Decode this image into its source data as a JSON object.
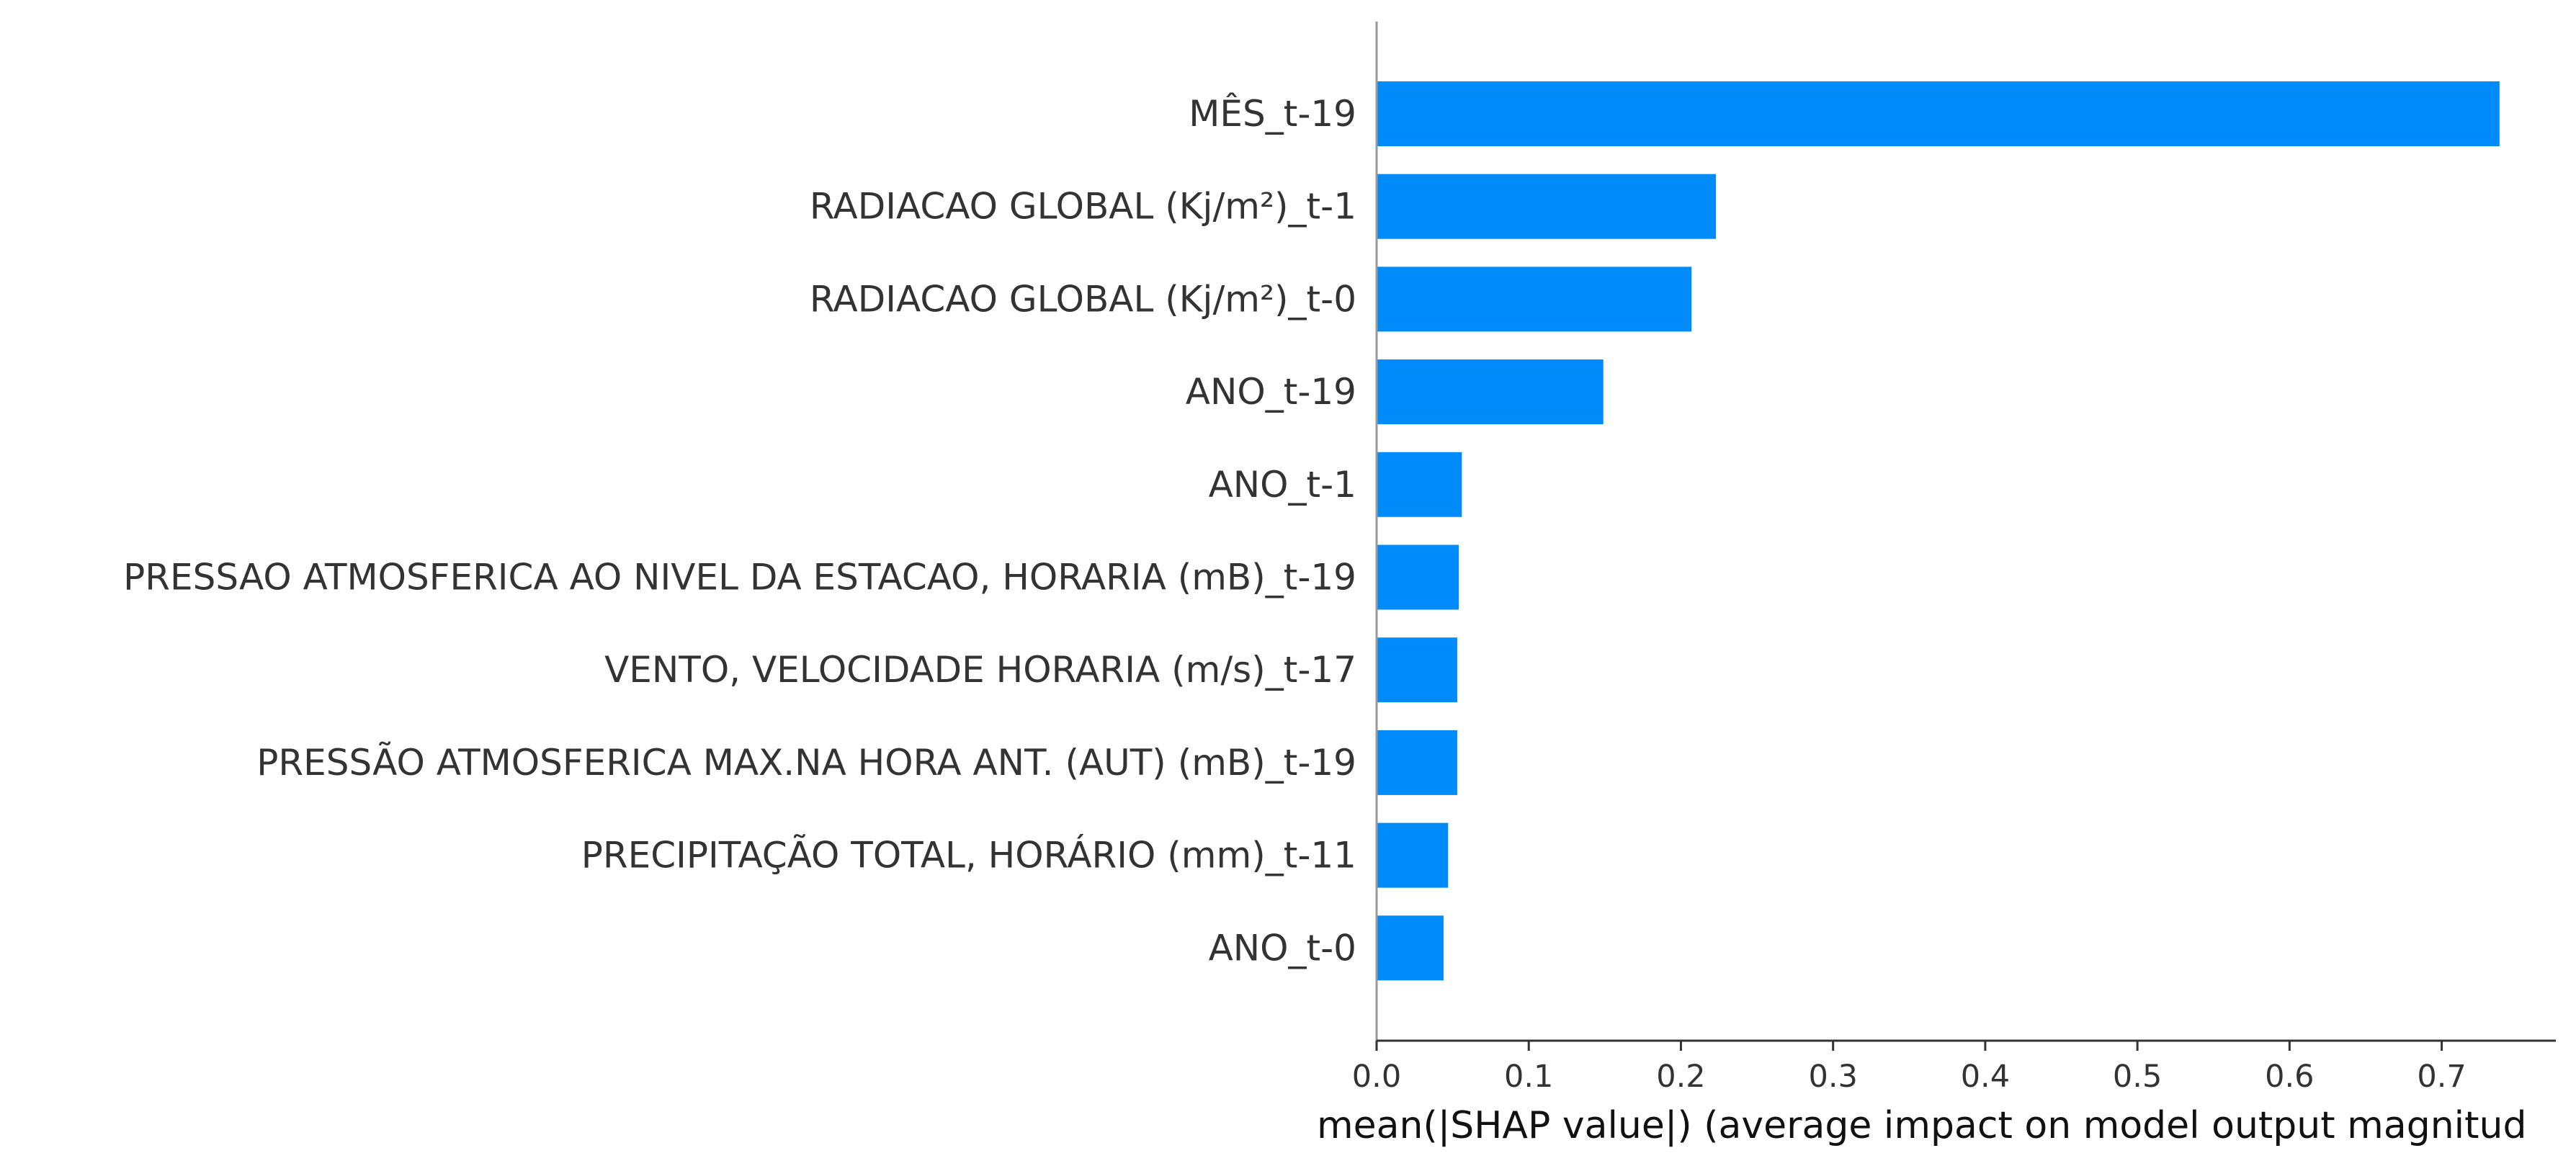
{
  "chart_data": {
    "type": "bar",
    "orientation": "horizontal",
    "categories": [
      "MÊS_t-19",
      "RADIACAO GLOBAL (Kj/m²)_t-1",
      "RADIACAO GLOBAL (Kj/m²)_t-0",
      "ANO_t-19",
      "ANO_t-1",
      "PRESSAO ATMOSFERICA AO NIVEL DA ESTACAO, HORARIA (mB)_t-19",
      "VENTO, VELOCIDADE HORARIA (m/s)_t-17",
      "PRESSÃO ATMOSFERICA MAX.NA HORA ANT. (AUT) (mB)_t-19",
      "PRECIPITAÇÃO TOTAL, HORÁRIO (mm)_t-11",
      "ANO_t-0"
    ],
    "values": [
      0.738,
      0.223,
      0.207,
      0.149,
      0.056,
      0.054,
      0.053,
      0.053,
      0.047,
      0.044
    ],
    "xlabel": "mean(|SHAP value|) (average impact on model output magnitud",
    "ylabel": "",
    "title": "",
    "xlim": [
      0,
      0.775
    ],
    "x_ticks": [
      0.0,
      0.1,
      0.2,
      0.3,
      0.4,
      0.5,
      0.6,
      0.7
    ],
    "x_tick_labels": [
      "0.0",
      "0.1",
      "0.2",
      "0.3",
      "0.4",
      "0.5",
      "0.6",
      "0.7"
    ],
    "grid": false,
    "legend": "none",
    "colors": {
      "bar": "#008bfb",
      "axis": "#333333",
      "left_spine": "#999999",
      "text": "#333333"
    }
  }
}
